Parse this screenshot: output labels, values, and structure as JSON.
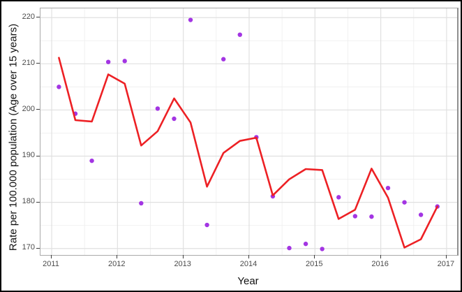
{
  "figure": {
    "title": "",
    "xlabel": "Year",
    "ylabel": "Rate per 100.000 population (Age over 15 years)"
  },
  "colors": {
    "trend_line": "#ed2024",
    "data_points": "#a335e3",
    "grid_major": "#e0e0e0",
    "grid_minor": "#efefef",
    "panel_border": "#a9a9a9",
    "tick_text": "#4a4a4a",
    "axis_title_text": "#111111",
    "outer_frame": "#000000",
    "background": "#ffffff"
  },
  "chart_data": {
    "type": "line",
    "subtype": "scatter-with-fitted-line",
    "title": "",
    "xlabel": "Year",
    "ylabel": "Rate per 100.000 population (Age over 15 years)",
    "xlim": [
      2010.83,
      2017.16
    ],
    "ylim": [
      168.6,
      222.0
    ],
    "x_ticks": [
      2011,
      2012,
      2013,
      2014,
      2015,
      2016,
      2017
    ],
    "y_ticks": [
      170,
      180,
      190,
      200,
      210,
      220
    ],
    "x_minor_gridlines": [
      2011.5,
      2012.5,
      2013.5,
      2014.5,
      2015.5,
      2016.5
    ],
    "y_minor_gridlines": [
      175,
      185,
      195,
      205,
      215
    ],
    "grid": true,
    "legend_position": "none",
    "x": [
      2011.11,
      2011.36,
      2011.61,
      2011.86,
      2012.11,
      2012.36,
      2012.61,
      2012.86,
      2013.11,
      2013.36,
      2013.61,
      2013.86,
      2014.11,
      2014.36,
      2014.61,
      2014.86,
      2015.11,
      2015.36,
      2015.61,
      2015.86,
      2016.11,
      2016.36,
      2016.61,
      2016.86
    ],
    "series": [
      {
        "name": "observed-rate-points",
        "render": "scatter",
        "color": "#a335e3",
        "point_radius": 3.2,
        "values": [
          205.0,
          199.2,
          189.0,
          210.4,
          210.6,
          179.8,
          200.3,
          198.1,
          219.5,
          175.1,
          211.0,
          216.3,
          194.1,
          181.3,
          170.1,
          171.0,
          169.9,
          181.1,
          177.0,
          176.9,
          183.1,
          180.0,
          177.3,
          179.1
        ]
      },
      {
        "name": "fitted-trend-line",
        "render": "line",
        "color": "#ed2024",
        "stroke_width": 2.6,
        "values": [
          211.3,
          197.8,
          197.5,
          207.7,
          205.7,
          192.3,
          195.4,
          202.5,
          197.3,
          183.4,
          190.7,
          193.3,
          194.0,
          181.5,
          185.0,
          187.2,
          187.0,
          176.4,
          178.4,
          187.3,
          181.0,
          170.2,
          172.0,
          179.1
        ]
      }
    ]
  }
}
